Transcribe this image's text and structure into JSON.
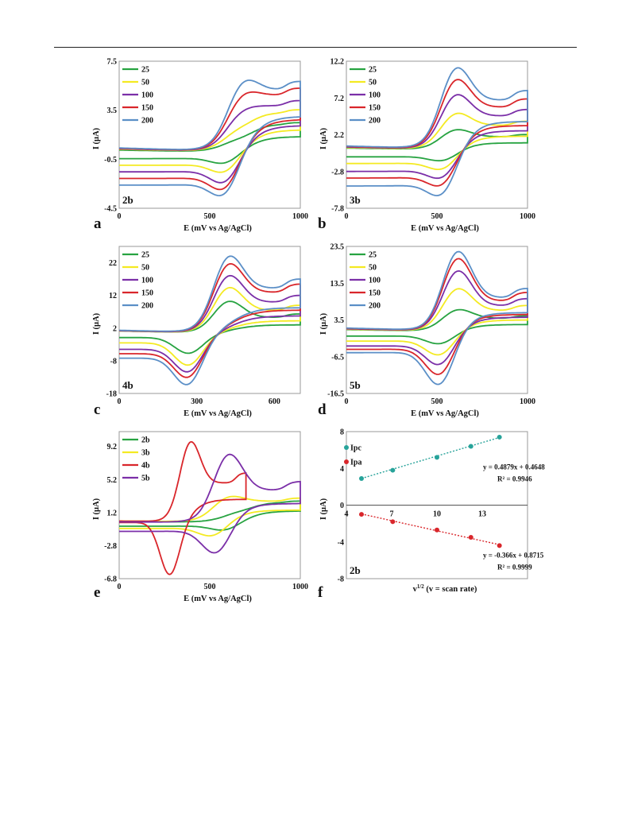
{
  "figure": {
    "panel_letters": [
      "a",
      "b",
      "c",
      "d",
      "e",
      "f"
    ]
  },
  "chart_data": [
    {
      "panel": "a",
      "badge": "2b",
      "type": "line",
      "xlabel": "E (mV vs Ag/AgCl)",
      "ylabel": "I (µA)",
      "xlim": [
        0,
        1000
      ],
      "ylim": [
        -4.5,
        7.5
      ],
      "xticks": [
        "0",
        "500",
        "1000"
      ],
      "yticks": [
        "-4.5",
        "-0.5",
        "3.5",
        "7.5"
      ],
      "legend_position": "top-left",
      "cv_model": {
        "ox_peak_E": 680,
        "red_peak_E": 590,
        "x_min": 0,
        "x_max": 1000
      },
      "series": [
        {
          "name": "25",
          "color": "#27a341",
          "ipa": 1.6,
          "ipc": -1.1,
          "bwd_end": 0.7,
          "fwd_end": -0.6,
          "ox_plateau": 2.7,
          "red_plateau": -0.5
        },
        {
          "name": "50",
          "color": "#f4ea22",
          "ipa": 2.6,
          "ipc": -2.0,
          "bwd_end": 0.9,
          "fwd_end": -1.0,
          "ox_plateau": 3.8,
          "red_plateau": -1.1
        },
        {
          "name": "100",
          "color": "#7b2fa8",
          "ipa": 3.9,
          "ipc": -3.0,
          "bwd_end": 1.0,
          "fwd_end": -1.6,
          "ox_plateau": 4.5,
          "red_plateau": -1.7
        },
        {
          "name": "150",
          "color": "#d9262b",
          "ipa": 5.3,
          "ipc": -3.7,
          "bwd_end": 1.1,
          "fwd_end": -2.2,
          "ox_plateau": 5.5,
          "red_plateau": -2.3
        },
        {
          "name": "200",
          "color": "#5b8fc7",
          "ipa": 6.4,
          "ipc": -4.3,
          "bwd_end": 1.2,
          "fwd_end": -2.8,
          "ox_plateau": 6.0,
          "red_plateau": -2.9
        }
      ]
    },
    {
      "panel": "b",
      "badge": "3b",
      "type": "line",
      "xlabel": "E (mV vs Ag/AgCl)",
      "ylabel": "I (µA)",
      "xlim": [
        0,
        1000
      ],
      "ylim": [
        -7.8,
        12.2
      ],
      "xticks": [
        "0",
        "500",
        "1000"
      ],
      "yticks": [
        "-7.8",
        "-2.8",
        "2.2",
        "7.2",
        "12.2"
      ],
      "legend_position": "top-left",
      "cv_model": {
        "ox_peak_E": 600,
        "red_peak_E": 540,
        "x_min": 0,
        "x_max": 1000
      },
      "series": [
        {
          "name": "25",
          "color": "#27a341",
          "ipa": 3.0,
          "ipc": -1.7,
          "bwd_end": 1.1,
          "fwd_end": -0.9,
          "ox_plateau": 2.2,
          "red_plateau": -0.9
        },
        {
          "name": "50",
          "color": "#f4ea22",
          "ipa": 5.4,
          "ipc": -3.2,
          "bwd_end": 1.3,
          "fwd_end": -1.9,
          "ox_plateau": 4.0,
          "red_plateau": -1.9
        },
        {
          "name": "100",
          "color": "#7b2fa8",
          "ipa": 8.1,
          "ipc": -4.7,
          "bwd_end": 1.5,
          "fwd_end": -3.1,
          "ox_plateau": 5.5,
          "red_plateau": -3.1
        },
        {
          "name": "150",
          "color": "#d9262b",
          "ipa": 10.3,
          "ipc": -6.0,
          "bwd_end": 1.7,
          "fwd_end": -4.1,
          "ox_plateau": 6.9,
          "red_plateau": -4.1
        },
        {
          "name": "200",
          "color": "#5b8fc7",
          "ipa": 12.0,
          "ipc": -7.6,
          "bwd_end": 1.9,
          "fwd_end": -5.2,
          "ox_plateau": 8.0,
          "red_plateau": -5.3
        }
      ]
    },
    {
      "panel": "c",
      "badge": "4b",
      "type": "line",
      "xlabel": "E (mV vs Ag/AgCl)",
      "ylabel": "I (µA)",
      "xlim": [
        0,
        700
      ],
      "ylim": [
        -18,
        27
      ],
      "xticks": [
        "0",
        "300",
        "600"
      ],
      "ytick_values": [
        -18,
        -8,
        2,
        12,
        22
      ],
      "yticks": [
        "-18",
        "-8",
        "2",
        "12",
        "22"
      ],
      "legend_position": "top-left",
      "cv_model": {
        "ox_peak_E": 420,
        "red_peak_E": 270,
        "x_min": 0,
        "x_max": 700
      },
      "series": [
        {
          "name": "25",
          "color": "#27a341",
          "ipa": 10.5,
          "ipc": -6.0,
          "bwd_end": 3.2,
          "fwd_end": -1.0,
          "ox_plateau": 6.0,
          "red_plateau": -1.0
        },
        {
          "name": "50",
          "color": "#f4ea22",
          "ipa": 15.0,
          "ipc": -10.0,
          "bwd_end": 3.3,
          "fwd_end": -2.8,
          "ox_plateau": 8.5,
          "red_plateau": -2.8
        },
        {
          "name": "100",
          "color": "#7b2fa8",
          "ipa": 19.0,
          "ipc": -12.5,
          "bwd_end": 3.4,
          "fwd_end": -5.0,
          "ox_plateau": 11.5,
          "red_plateau": -5.0
        },
        {
          "name": "150",
          "color": "#d9262b",
          "ipa": 23.0,
          "ipc": -14.5,
          "bwd_end": 3.6,
          "fwd_end": -6.5,
          "ox_plateau": 15.0,
          "red_plateau": -6.5
        },
        {
          "name": "200",
          "color": "#5b8fc7",
          "ipa": 25.5,
          "ipc": -17.0,
          "bwd_end": 3.8,
          "fwd_end": -8.0,
          "ox_plateau": 16.5,
          "red_plateau": -8.0
        }
      ]
    },
    {
      "panel": "d",
      "badge": "5b",
      "type": "line",
      "xlabel": "E (mV vs Ag/AgCl)",
      "ylabel": "I (µA)",
      "xlim": [
        0,
        1000
      ],
      "ylim": [
        -16.5,
        23.5
      ],
      "xticks": [
        "0",
        "500",
        "1000"
      ],
      "yticks": [
        "-16.5",
        "-6.5",
        "3.5",
        "13.5",
        "23.5"
      ],
      "legend_position": "top-left",
      "cv_model": {
        "ox_peak_E": 610,
        "red_peak_E": 520,
        "x_min": 0,
        "x_max": 1000
      },
      "series": [
        {
          "name": "25",
          "color": "#27a341",
          "ipa": 6.5,
          "ipc": -3.5,
          "bwd_end": 2.5,
          "fwd_end": -1.0,
          "ox_plateau": 4.5,
          "red_plateau": -1.0
        },
        {
          "name": "50",
          "color": "#f4ea22",
          "ipa": 12.5,
          "ipc": -7.0,
          "bwd_end": 2.8,
          "fwd_end": -2.5,
          "ox_plateau": 7.0,
          "red_plateau": -2.5
        },
        {
          "name": "100",
          "color": "#7b2fa8",
          "ipa": 17.5,
          "ipc": -10.0,
          "bwd_end": 3.1,
          "fwd_end": -4.0,
          "ox_plateau": 8.5,
          "red_plateau": -4.0
        },
        {
          "name": "150",
          "color": "#d9262b",
          "ipa": 21.0,
          "ipc": -13.0,
          "bwd_end": 3.4,
          "fwd_end": -5.0,
          "ox_plateau": 10.0,
          "red_plateau": -5.0
        },
        {
          "name": "200",
          "color": "#5b8fc7",
          "ipa": 23.0,
          "ipc": -16.0,
          "bwd_end": 3.7,
          "fwd_end": -6.0,
          "ox_plateau": 11.0,
          "red_plateau": -6.0
        }
      ]
    },
    {
      "panel": "e",
      "badge": "",
      "type": "line",
      "xlabel": "E (mV vs Ag/AgCl)",
      "ylabel": "I (µA)",
      "xlim": [
        0,
        1000
      ],
      "ylim": [
        -6.8,
        11.0
      ],
      "xticks": [
        "0",
        "500",
        "1000"
      ],
      "ytick_values": [
        -6.8,
        -2.8,
        1.2,
        5.2,
        9.2
      ],
      "yticks": [
        "-6.8",
        "-2.8",
        "1.2",
        "5.2",
        "9.2"
      ],
      "legend_position": "top-left",
      "series": [
        {
          "name": "2b",
          "color": "#27a341",
          "cv": {
            "ox_peak_E": 680,
            "red_peak_E": 590,
            "x_min": 0,
            "x_max": 1000,
            "ipa": 1.8,
            "ipc": -1.2,
            "bwd_end": 0.3,
            "fwd_end": -0.5,
            "ox_plateau": 2.8,
            "red_plateau": -0.5
          }
        },
        {
          "name": "3b",
          "color": "#f4ea22",
          "cv": {
            "ox_peak_E": 600,
            "red_peak_E": 520,
            "x_min": 0,
            "x_max": 1000,
            "ipa": 3.4,
            "ipc": -2.0,
            "bwd_end": 0.5,
            "fwd_end": -0.8,
            "ox_plateau": 3.0,
            "red_plateau": -0.8
          }
        },
        {
          "name": "4b",
          "color": "#d9262b",
          "cv": {
            "ox_peak_E": 390,
            "red_peak_E": 280,
            "x_min": 0,
            "x_max": 700,
            "ipa": 10.4,
            "ipc": -6.5,
            "bwd_end": 0.5,
            "fwd_end": 0.0,
            "ox_plateau": 5.6,
            "red_plateau": 0.0
          }
        },
        {
          "name": "5b",
          "color": "#7b2fa8",
          "cv": {
            "ox_peak_E": 600,
            "red_peak_E": 540,
            "x_min": 0,
            "x_max": 1000,
            "ipa": 8.8,
            "ipc": -4.4,
            "bwd_end": 0.2,
            "fwd_end": -1.2,
            "ox_plateau": 4.6,
            "red_plateau": -1.2
          }
        }
      ]
    },
    {
      "panel": "f",
      "badge": "2b",
      "type": "scatter",
      "xlabel": "v1/2 (v = scan rate)",
      "ylabel": "I (µA)",
      "xlim": [
        4,
        16
      ],
      "ylim": [
        -8,
        8
      ],
      "xticks": [
        "4",
        "7",
        "10",
        "13"
      ],
      "xtick_values": [
        4,
        7,
        10,
        13
      ],
      "yticks": [
        "-8",
        "-4",
        "0",
        "4",
        "8"
      ],
      "ytick_values": [
        -8,
        -4,
        0,
        4,
        8
      ],
      "legend_position": "top-left",
      "series": [
        {
          "name": "Ipc",
          "color": "#27a39a",
          "x": [
            5.0,
            7.07,
            10.0,
            12.25,
            14.14
          ],
          "y": [
            2.9,
            3.8,
            5.2,
            6.4,
            7.4
          ],
          "fit": {
            "slope": 0.4879,
            "intercept": 0.4648
          },
          "equation": "y = 0.4879x + 0.4648",
          "r2": "R² = 0.9946"
        },
        {
          "name": "Ipa",
          "color": "#d9262b",
          "x": [
            5.0,
            7.07,
            10.0,
            12.25,
            14.14
          ],
          "y": [
            -1.0,
            -1.8,
            -2.7,
            -3.5,
            -4.4
          ],
          "fit": {
            "slope": -0.366,
            "intercept": 0.8715
          },
          "equation": "y = -0.366x + 0.8715",
          "r2": "R² = 0.9999"
        }
      ]
    }
  ]
}
